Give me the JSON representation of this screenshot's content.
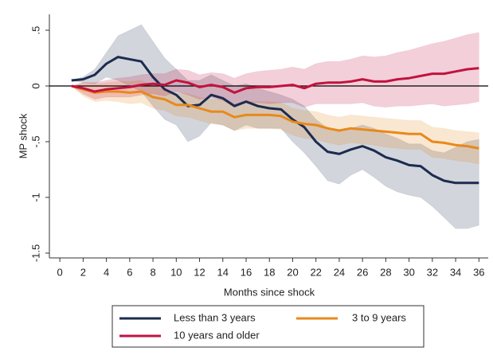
{
  "chart_data": {
    "type": "line",
    "x_label": "Months since shock",
    "y_label": "MP shock",
    "x": [
      1,
      2,
      3,
      4,
      5,
      6,
      7,
      8,
      9,
      10,
      11,
      12,
      13,
      14,
      15,
      16,
      17,
      18,
      19,
      20,
      21,
      22,
      23,
      24,
      25,
      26,
      27,
      28,
      29,
      30,
      31,
      32,
      33,
      34,
      35,
      36
    ],
    "xlim": [
      -0.9,
      36.8
    ],
    "xticks": [
      0,
      2,
      4,
      6,
      8,
      10,
      12,
      14,
      16,
      18,
      20,
      22,
      24,
      26,
      28,
      30,
      32,
      34,
      36
    ],
    "ylim": [
      -1.543,
      0.643
    ],
    "yticks": [
      {
        "value": 0.5,
        "label": ".5"
      },
      0,
      {
        "value": -0.5,
        "label": "-.5"
      },
      -1,
      -1.5
    ],
    "hline": 0,
    "series": [
      {
        "name": "Less than 3 years",
        "color": "#1c2b4f",
        "values": [
          0.05,
          0.06,
          0.1,
          0.2,
          0.26,
          0.24,
          0.22,
          0.08,
          -0.03,
          -0.08,
          -0.18,
          -0.17,
          -0.08,
          -0.11,
          -0.18,
          -0.14,
          -0.18,
          -0.2,
          -0.21,
          -0.3,
          -0.37,
          -0.5,
          -0.59,
          -0.61,
          -0.57,
          -0.54,
          -0.58,
          -0.64,
          -0.67,
          -0.71,
          -0.72,
          -0.8,
          -0.85,
          -0.87,
          -0.87,
          -0.87
        ],
        "band_upper": [
          0.05,
          0.08,
          0.15,
          0.3,
          0.45,
          0.5,
          0.55,
          0.4,
          0.25,
          0.15,
          0.05,
          0.05,
          0.1,
          0.05,
          0.0,
          0.02,
          -0.02,
          -0.05,
          -0.08,
          -0.12,
          -0.18,
          -0.3,
          -0.38,
          -0.4,
          -0.38,
          -0.35,
          -0.38,
          -0.43,
          -0.47,
          -0.52,
          -0.52,
          -0.58,
          -0.6,
          -0.55,
          -0.5,
          -0.48
        ],
        "band_lower": [
          0.05,
          0.03,
          0.02,
          0.08,
          0.05,
          0.0,
          -0.05,
          -0.18,
          -0.3,
          -0.35,
          -0.5,
          -0.45,
          -0.33,
          -0.35,
          -0.4,
          -0.35,
          -0.38,
          -0.38,
          -0.38,
          -0.5,
          -0.6,
          -0.72,
          -0.85,
          -0.88,
          -0.8,
          -0.75,
          -0.82,
          -0.9,
          -0.95,
          -0.98,
          -1.0,
          -1.08,
          -1.18,
          -1.28,
          -1.28,
          -1.25
        ]
      },
      {
        "name": "3 to 9 years",
        "color": "#e8891b",
        "values": [
          0,
          -0.03,
          -0.06,
          -0.05,
          -0.05,
          -0.06,
          -0.05,
          -0.1,
          -0.12,
          -0.17,
          -0.17,
          -0.2,
          -0.23,
          -0.23,
          -0.28,
          -0.26,
          -0.26,
          -0.26,
          -0.27,
          -0.32,
          -0.34,
          -0.35,
          -0.38,
          -0.4,
          -0.38,
          -0.39,
          -0.4,
          -0.41,
          -0.42,
          -0.43,
          -0.43,
          -0.5,
          -0.51,
          -0.53,
          -0.54,
          -0.56
        ],
        "band_upper": [
          0,
          0.03,
          0.02,
          0.03,
          0.04,
          0.04,
          0.05,
          0.0,
          -0.03,
          -0.07,
          -0.07,
          -0.1,
          -0.12,
          -0.12,
          -0.16,
          -0.14,
          -0.14,
          -0.14,
          -0.15,
          -0.2,
          -0.22,
          -0.23,
          -0.26,
          -0.28,
          -0.26,
          -0.27,
          -0.28,
          -0.29,
          -0.3,
          -0.31,
          -0.31,
          -0.37,
          -0.38,
          -0.4,
          -0.41,
          -0.42
        ],
        "band_lower": [
          0,
          -0.09,
          -0.14,
          -0.13,
          -0.14,
          -0.16,
          -0.15,
          -0.2,
          -0.22,
          -0.27,
          -0.28,
          -0.31,
          -0.34,
          -0.35,
          -0.4,
          -0.38,
          -0.38,
          -0.38,
          -0.39,
          -0.44,
          -0.47,
          -0.48,
          -0.51,
          -0.53,
          -0.51,
          -0.52,
          -0.53,
          -0.55,
          -0.56,
          -0.57,
          -0.57,
          -0.64,
          -0.65,
          -0.67,
          -0.68,
          -0.7
        ]
      },
      {
        "name": "10 years and older",
        "color": "#c2123f",
        "values": [
          0,
          -0.02,
          -0.05,
          -0.03,
          -0.02,
          -0.01,
          0.01,
          0.02,
          0.01,
          0.05,
          0.03,
          -0.01,
          0.01,
          -0.01,
          -0.06,
          -0.02,
          -0.01,
          -0.01,
          0.0,
          0.01,
          -0.02,
          0.02,
          0.03,
          0.03,
          0.04,
          0.06,
          0.04,
          0.04,
          0.06,
          0.07,
          0.09,
          0.11,
          0.11,
          0.13,
          0.15,
          0.16
        ],
        "band_upper": [
          0,
          0.03,
          0.03,
          0.05,
          0.07,
          0.08,
          0.1,
          0.11,
          0.11,
          0.15,
          0.14,
          0.1,
          0.12,
          0.11,
          0.07,
          0.11,
          0.13,
          0.14,
          0.15,
          0.17,
          0.15,
          0.2,
          0.22,
          0.22,
          0.24,
          0.27,
          0.26,
          0.27,
          0.3,
          0.32,
          0.35,
          0.38,
          0.4,
          0.43,
          0.46,
          0.48
        ],
        "band_lower": [
          0,
          -0.07,
          -0.12,
          -0.1,
          -0.1,
          -0.1,
          -0.08,
          -0.07,
          -0.09,
          -0.05,
          -0.08,
          -0.12,
          -0.1,
          -0.13,
          -0.19,
          -0.15,
          -0.15,
          -0.16,
          -0.15,
          -0.15,
          -0.19,
          -0.16,
          -0.16,
          -0.16,
          -0.16,
          -0.15,
          -0.18,
          -0.19,
          -0.18,
          -0.18,
          -0.17,
          -0.16,
          -0.18,
          -0.17,
          -0.16,
          -0.14
        ]
      }
    ]
  }
}
